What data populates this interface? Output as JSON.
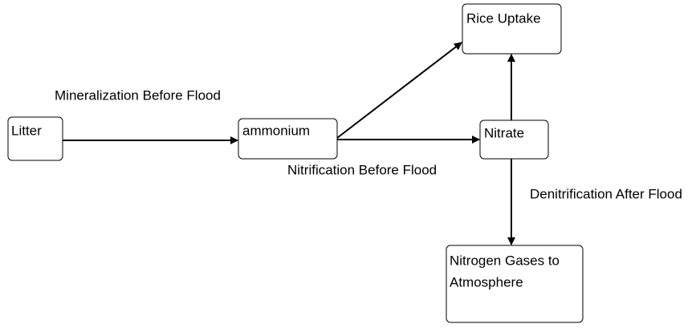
{
  "nodes": [
    {
      "label": "Litter"
    },
    {
      "label": "ammonium"
    },
    {
      "label": "Rice Uptake"
    },
    {
      "label": "Nitrate"
    },
    {
      "lines": [
        "Nitrogen Gases to",
        "Atmosphere"
      ]
    }
  ],
  "edge_labels": [
    "Mineralization Before Flood",
    "Nitrification Before Flood",
    "Denitrification After Flood"
  ]
}
